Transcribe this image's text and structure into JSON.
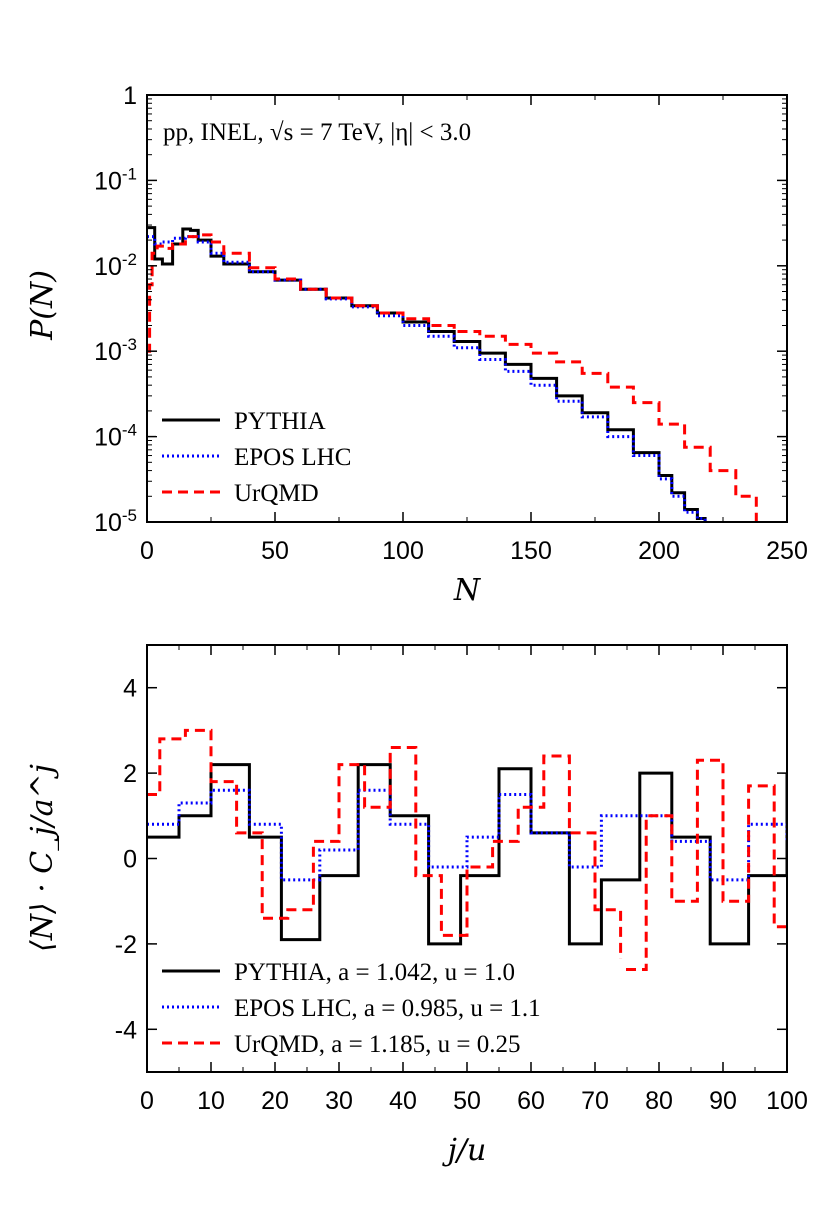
{
  "chart_data": [
    {
      "type": "line",
      "annotation": "pp, INEL, √s = 7 TeV, |η| < 3.0",
      "xlabel": "N",
      "ylabel": "P(N)",
      "xlim": [
        0,
        250
      ],
      "ylim": [
        1e-05,
        1
      ],
      "yscale": "log",
      "xticks": [
        0,
        50,
        100,
        150,
        200,
        250
      ],
      "xtick_labels": [
        "0",
        "50",
        "100",
        "150",
        "200",
        "250"
      ],
      "yticks": [
        1,
        0.1,
        0.01,
        0.001,
        0.0001,
        1e-05
      ],
      "ytick_labels": [
        {
          "base": "1",
          "exp": ""
        },
        {
          "base": "10",
          "exp": "-1"
        },
        {
          "base": "10",
          "exp": "-2"
        },
        {
          "base": "10",
          "exp": "-3"
        },
        {
          "base": "10",
          "exp": "-4"
        },
        {
          "base": "10",
          "exp": "-5"
        }
      ],
      "legend_position": "bottom-left",
      "series": [
        {
          "name": "PYTHIA",
          "color": "#000000",
          "dash": "solid",
          "x": [
            0,
            3,
            6,
            10,
            14,
            17,
            20,
            25,
            30,
            40,
            50,
            60,
            70,
            80,
            90,
            100,
            110,
            120,
            130,
            140,
            150,
            160,
            170,
            180,
            190,
            200,
            205,
            210,
            215,
            218
          ],
          "y": [
            0.028,
            0.012,
            0.0105,
            0.018,
            0.027,
            0.026,
            0.02,
            0.013,
            0.0105,
            0.0085,
            0.0068,
            0.0053,
            0.0042,
            0.0034,
            0.0028,
            0.0022,
            0.0017,
            0.0013,
            0.00095,
            0.0007,
            0.00048,
            0.0003,
            0.00019,
            0.00012,
            6.5e-05,
            3.5e-05,
            2.2e-05,
            1.4e-05,
            1.1e-05,
            1e-05
          ]
        },
        {
          "name": "EPOS LHC",
          "color": "#0000ff",
          "dash": "dotted",
          "x": [
            0,
            3,
            6,
            10,
            15,
            20,
            25,
            30,
            40,
            50,
            60,
            70,
            80,
            90,
            100,
            110,
            120,
            130,
            140,
            150,
            160,
            170,
            180,
            190,
            200,
            205,
            210,
            215,
            218
          ],
          "y": [
            0.022,
            0.018,
            0.019,
            0.021,
            0.022,
            0.019,
            0.014,
            0.011,
            0.0085,
            0.0068,
            0.0053,
            0.0041,
            0.0033,
            0.0026,
            0.002,
            0.0015,
            0.0011,
            0.0008,
            0.00058,
            0.0004,
            0.00026,
            0.00017,
            0.0001,
            6e-05,
            3.2e-05,
            2e-05,
            1.3e-05,
            1.1e-05,
            1e-05
          ]
        },
        {
          "name": "UrQMD",
          "color": "#ff0000",
          "dash": "dashed",
          "x": [
            0,
            1,
            2,
            4,
            6,
            10,
            15,
            20,
            25,
            30,
            40,
            50,
            60,
            70,
            80,
            90,
            100,
            110,
            120,
            130,
            140,
            150,
            160,
            170,
            180,
            190,
            200,
            210,
            220,
            230,
            238
          ],
          "y": [
            0.001,
            0.006,
            0.014,
            0.017,
            0.016,
            0.018,
            0.022,
            0.023,
            0.019,
            0.014,
            0.0095,
            0.007,
            0.0053,
            0.0042,
            0.0034,
            0.0028,
            0.0024,
            0.002,
            0.0017,
            0.0015,
            0.0012,
            0.00095,
            0.00075,
            0.00055,
            0.00038,
            0.00025,
            0.00014,
            7.5e-05,
            4e-05,
            2e-05,
            1e-05
          ]
        }
      ]
    },
    {
      "type": "line",
      "xlabel": "j/u",
      "ylabel": "⟨N⟩ · C_j/a^j",
      "xlim": [
        0,
        100
      ],
      "ylim": [
        -5,
        5
      ],
      "xticks": [
        0,
        10,
        20,
        30,
        40,
        50,
        60,
        70,
        80,
        90,
        100
      ],
      "xtick_labels": [
        "0",
        "10",
        "20",
        "30",
        "40",
        "50",
        "60",
        "70",
        "80",
        "90",
        "100"
      ],
      "yticks": [
        4,
        2,
        0,
        -2,
        -4
      ],
      "ytick_labels": [
        "4",
        "2",
        "0",
        "-2",
        "-4"
      ],
      "legend_position": "bottom-left",
      "series": [
        {
          "name": "PYTHIA, a = 1.042, u = 1.0",
          "color": "#000000",
          "dash": "solid",
          "x": [
            0,
            5,
            10,
            16,
            21,
            27,
            33,
            38,
            44,
            49,
            55,
            60,
            66,
            71,
            77,
            82,
            88,
            94,
            100
          ],
          "y": [
            0.5,
            1.0,
            2.2,
            0.5,
            -1.9,
            -0.4,
            2.2,
            1.0,
            -2.0,
            -0.4,
            2.1,
            0.6,
            -2.0,
            -0.5,
            2.0,
            0.5,
            -2.0,
            -0.4,
            2.0
          ]
        },
        {
          "name": "EPOS LHC, a = 0.985, u = 1.1",
          "color": "#0000ff",
          "dash": "dotted",
          "x": [
            0,
            5,
            10,
            16,
            21,
            27,
            33,
            38,
            44,
            50,
            55,
            60,
            66,
            71,
            77,
            82,
            88,
            94,
            100
          ],
          "y": [
            0.8,
            1.3,
            1.6,
            0.8,
            -0.5,
            0.2,
            1.6,
            0.8,
            -0.2,
            0.5,
            1.5,
            0.6,
            -0.2,
            1.0,
            1.0,
            0.4,
            -0.5,
            0.8,
            0.4
          ]
        },
        {
          "name": "UrQMD, a = 1.185, u = 0.25",
          "color": "#ff0000",
          "dash": "dashed",
          "x": [
            0,
            2,
            6,
            10,
            14,
            18,
            22,
            26,
            30,
            34,
            38,
            42,
            46,
            50,
            54,
            58,
            62,
            66,
            70,
            74,
            78,
            82,
            86,
            90,
            94,
            98,
            100
          ],
          "y": [
            1.5,
            2.8,
            3.0,
            1.8,
            0.6,
            -1.4,
            -1.2,
            0.4,
            2.2,
            1.2,
            2.6,
            -0.4,
            -1.8,
            -0.2,
            0.4,
            1.2,
            2.4,
            0.6,
            -1.2,
            -2.6,
            1.0,
            -1.0,
            2.3,
            -1.0,
            1.7,
            -1.6,
            -1.6
          ]
        }
      ]
    }
  ]
}
